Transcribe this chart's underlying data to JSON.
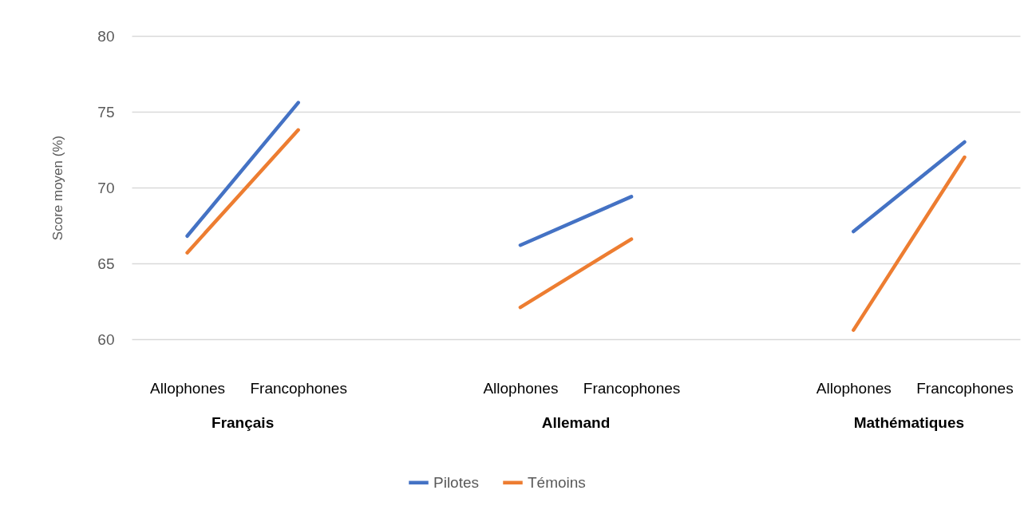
{
  "chart_data": {
    "type": "line",
    "ylabel": "Score moyen (%)",
    "categories": [
      "Allophones",
      "Francophones",
      null,
      "Allophones",
      "Francophones",
      null,
      "Allophones",
      "Francophones"
    ],
    "annotations": [
      "Français",
      "Allemand",
      "Mathématiques"
    ],
    "series": [
      {
        "name": "Pilotes",
        "color": "#4472c4",
        "values": [
          66.8,
          75.6,
          null,
          66.2,
          69.4,
          null,
          67.1,
          73.0
        ]
      },
      {
        "name": "Témoins",
        "color": "#ed7d31",
        "values": [
          65.7,
          73.8,
          null,
          62.1,
          66.6,
          null,
          60.6,
          72.0
        ]
      }
    ],
    "ylim": [
      60,
      80
    ],
    "yticks": [
      60,
      65,
      70,
      75,
      80
    ],
    "grid": "y",
    "legend": "bottom",
    "line_style": "solid",
    "marker": "none"
  }
}
